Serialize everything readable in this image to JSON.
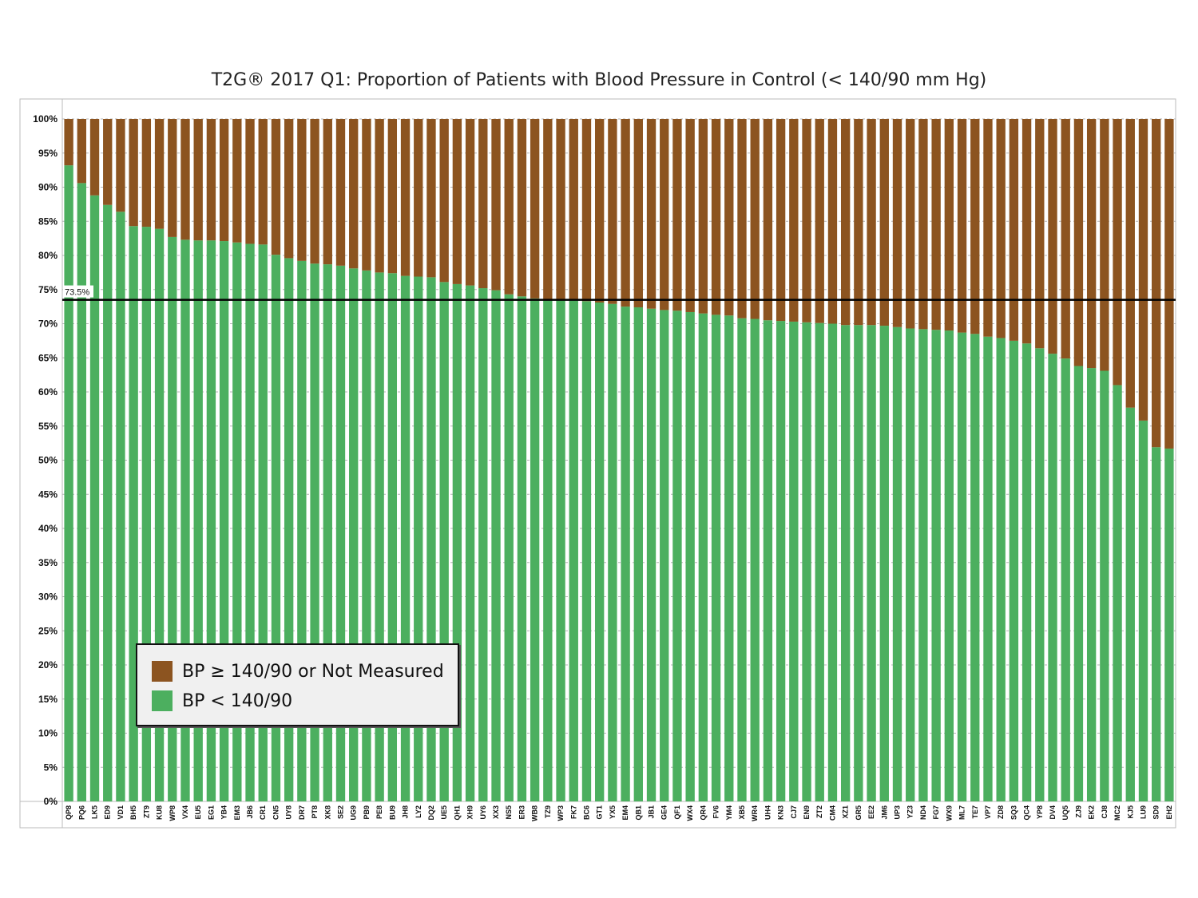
{
  "colors": {
    "controlled": "#4caf5f",
    "uncontrolled": "#8c5420",
    "reference_line": "#000000",
    "grid": "#b5b5b5"
  },
  "chart_data": {
    "type": "bar",
    "stacked": true,
    "title": "T2G® 2017 Q1: Proportion of Patients with Blood Pressure in Control (< 140/90 mm Hg)",
    "xlabel": "",
    "ylabel": "",
    "ylim": [
      0,
      100
    ],
    "y_ticks": [
      "0%",
      "5%",
      "10%",
      "15%",
      "20%",
      "25%",
      "30%",
      "35%",
      "40%",
      "45%",
      "50%",
      "55%",
      "60%",
      "65%",
      "70%",
      "75%",
      "80%",
      "85%",
      "90%",
      "95%",
      "100%"
    ],
    "grid": true,
    "legend_position": "bottom-left",
    "reference_line": {
      "value": 73.5,
      "label": "73.5%"
    },
    "categories": [
      "QP8",
      "PQ6",
      "LK5",
      "ED9",
      "VD1",
      "BH5",
      "ZT9",
      "KU8",
      "WP8",
      "VX4",
      "EU5",
      "EG1",
      "YB4",
      "EM3",
      "JB6",
      "CR1",
      "CN5",
      "UY8",
      "DR7",
      "PT8",
      "XK8",
      "SE2",
      "UG9",
      "PB9",
      "PE8",
      "BU9",
      "JH8",
      "LY2",
      "DQ2",
      "UE5",
      "QH1",
      "XH9",
      "UY6",
      "XX3",
      "NS5",
      "ER3",
      "WB8",
      "TZ9",
      "WP3",
      "FK7",
      "BC6",
      "GT1",
      "YX5",
      "EM4",
      "QB1",
      "JB1",
      "GE4",
      "QF1",
      "WX4",
      "QR4",
      "FV6",
      "YM4",
      "XB5",
      "WR4",
      "UH4",
      "KN3",
      "CJ7",
      "EN9",
      "ZT2",
      "CM4",
      "XZ1",
      "GR5",
      "EE2",
      "JM6",
      "UP3",
      "YZ3",
      "ND4",
      "FG7",
      "WX9",
      "ML7",
      "TE7",
      "VP7",
      "ZD8",
      "SQ3",
      "QC4",
      "YP8",
      "DV4",
      "UQ5",
      "ZJ9",
      "EK2",
      "CJ8",
      "MC2",
      "KJ5",
      "LU9",
      "SD9",
      "EH2"
    ],
    "series": [
      {
        "name": "BP < 140/90",
        "values": [
          93.2,
          90.6,
          88.8,
          87.4,
          86.4,
          84.3,
          84.2,
          83.9,
          82.7,
          82.3,
          82.2,
          82.2,
          82.1,
          81.9,
          81.7,
          81.6,
          80.1,
          79.6,
          79.2,
          78.8,
          78.7,
          78.5,
          78.1,
          77.8,
          77.5,
          77.4,
          77.0,
          76.9,
          76.8,
          76.1,
          75.8,
          75.6,
          75.2,
          74.9,
          74.3,
          74.0,
          73.7,
          73.6,
          73.4,
          73.4,
          73.3,
          73.1,
          72.9,
          72.5,
          72.4,
          72.2,
          72.0,
          71.9,
          71.7,
          71.5,
          71.3,
          71.2,
          70.8,
          70.7,
          70.5,
          70.4,
          70.3,
          70.2,
          70.1,
          70.0,
          69.8,
          69.8,
          69.8,
          69.7,
          69.5,
          69.3,
          69.2,
          69.1,
          69.0,
          68.7,
          68.5,
          68.1,
          67.9,
          67.5,
          67.1,
          66.4,
          65.6,
          64.9,
          63.8,
          63.5,
          63.1,
          61.0,
          57.7,
          55.8,
          51.9,
          51.7
        ]
      },
      {
        "name": "BP ≥ 140/90 or Not Measured",
        "values": [
          6.8,
          9.4,
          11.2,
          12.6,
          13.6,
          15.7,
          15.8,
          16.1,
          17.3,
          17.7,
          17.8,
          17.8,
          17.9,
          18.1,
          18.3,
          18.4,
          19.9,
          20.4,
          20.8,
          21.2,
          21.3,
          21.5,
          21.9,
          22.2,
          22.5,
          22.6,
          23.0,
          23.1,
          23.2,
          23.9,
          24.2,
          24.4,
          24.8,
          25.1,
          25.7,
          26.0,
          26.3,
          26.4,
          26.6,
          26.6,
          26.7,
          26.9,
          27.1,
          27.5,
          27.6,
          27.8,
          28.0,
          28.1,
          28.3,
          28.5,
          28.7,
          28.8,
          29.2,
          29.3,
          29.5,
          29.6,
          29.7,
          29.8,
          29.9,
          30.0,
          30.2,
          30.2,
          30.2,
          30.3,
          30.5,
          30.7,
          30.8,
          30.9,
          31.0,
          31.3,
          31.5,
          31.9,
          32.1,
          32.5,
          32.9,
          33.6,
          34.4,
          35.1,
          36.2,
          36.5,
          36.9,
          39.0,
          42.3,
          44.2,
          48.1,
          48.3
        ]
      }
    ]
  },
  "legend": {
    "items": [
      {
        "label": "BP ≥ 140/90 or Not Measured",
        "color": "#8c5420"
      },
      {
        "label": "BP < 140/90",
        "color": "#4caf5f"
      }
    ]
  }
}
